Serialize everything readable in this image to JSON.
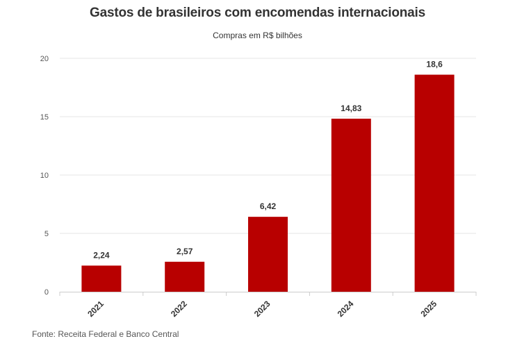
{
  "chart_data": {
    "type": "bar",
    "title": "Gastos de brasileiros com encomendas internacionais",
    "subtitle": "Compras em R$ bilhões",
    "categories": [
      "2021",
      "2022",
      "2023",
      "2024",
      "2025"
    ],
    "values": [
      2.24,
      2.57,
      6.42,
      14.83,
      18.6
    ],
    "value_labels": [
      "2,24",
      "2,57",
      "6,42",
      "14,83",
      "18,6"
    ],
    "yticks": [
      0,
      5,
      10,
      15,
      20
    ],
    "ylim": [
      0,
      20
    ],
    "xlabel": "",
    "ylabel": "",
    "grid": true,
    "source": "Fonte: Receita Federal e Banco Central"
  },
  "colors": {
    "bar": "#b80000",
    "grid": "#e6e6e6",
    "axis": "#cccccc"
  }
}
